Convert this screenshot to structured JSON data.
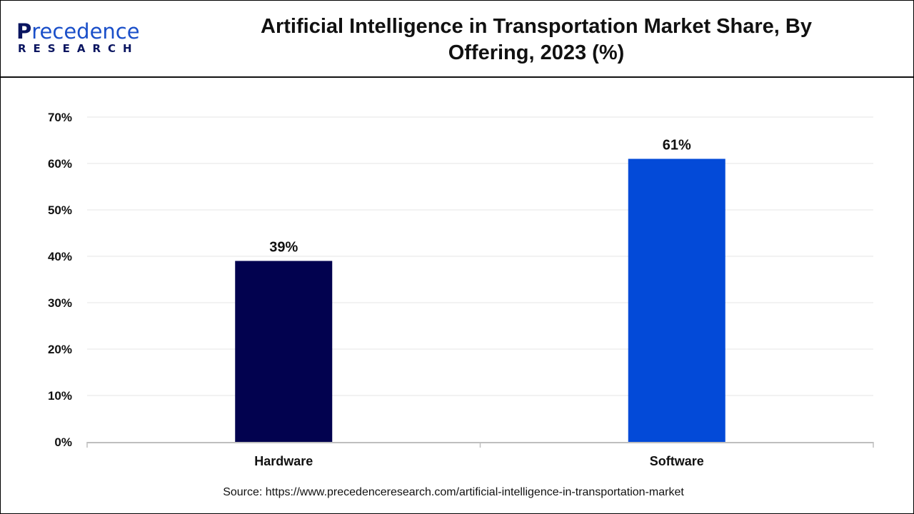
{
  "logo": {
    "line1": "Precedence",
    "line2": "RESEARCH"
  },
  "colors": {
    "hardware": "#02024f",
    "software": "#034ad8",
    "grid": "#e6e6e6"
  },
  "chart_data": {
    "type": "bar",
    "title": "Artificial Intelligence in Transportation Market Share, By Offering, 2023 (%)",
    "categories": [
      "Hardware",
      "Software"
    ],
    "values": [
      39,
      61
    ],
    "data_labels": [
      "39%",
      "61%"
    ],
    "ylim": [
      0,
      70
    ],
    "yticks": [
      "0%",
      "10%",
      "20%",
      "30%",
      "40%",
      "50%",
      "60%",
      "70%"
    ],
    "grid": true,
    "xlabel": "",
    "ylabel": ""
  },
  "source": "Source: https://www.precedenceresearch.com/artificial-intelligence-in-transportation-market"
}
